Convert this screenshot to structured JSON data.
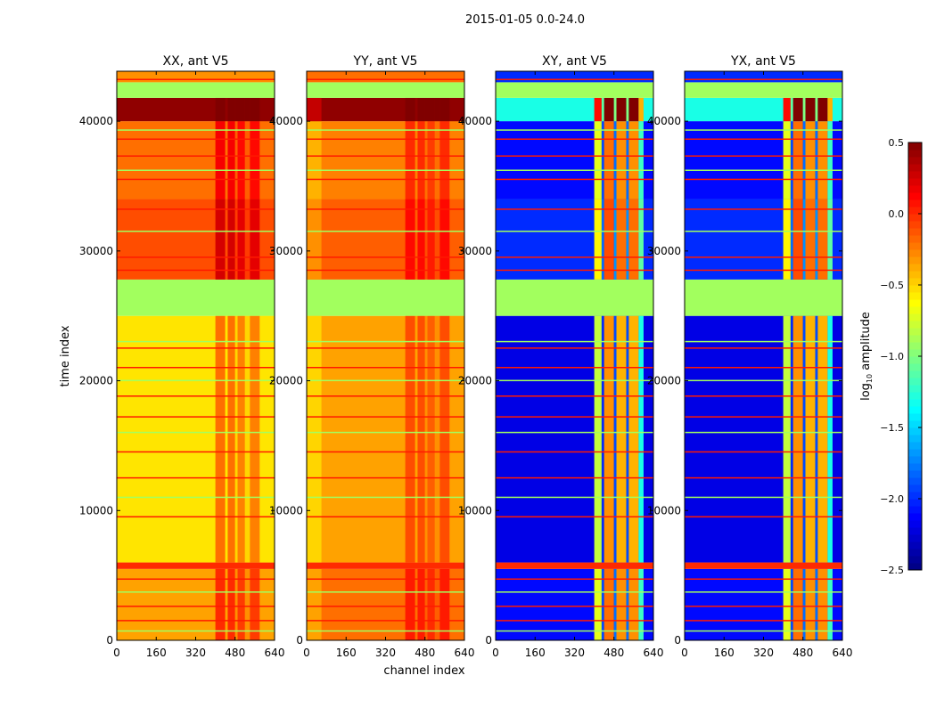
{
  "chart_data": {
    "type": "heatmap",
    "suptitle": "2015-01-05 0.0-24.0",
    "xlabel": "channel index",
    "ylabel": "time index",
    "xlim": [
      0,
      640
    ],
    "ylim": [
      0,
      43850
    ],
    "xticks": [
      0,
      160,
      320,
      480,
      640
    ],
    "yticks": [
      0,
      10000,
      20000,
      30000,
      40000
    ],
    "colorbar": {
      "label_main": "log",
      "label_sub": "10",
      "label_rest": " amplitude",
      "range": [
        -2.5,
        0.5
      ],
      "ticks": [
        -2.5,
        -2.0,
        -1.5,
        -1.0,
        -0.5,
        0.0,
        0.5
      ],
      "tick_labels": [
        "−2.5",
        "−2.0",
        "−1.5",
        "−1.0",
        "−0.5",
        "0.0",
        "0.5"
      ]
    },
    "panels": [
      {
        "title": "XX, ant V5",
        "bands": [
          [
            0,
            5500,
            -0.35
          ],
          [
            5500,
            6000,
            0.0
          ],
          [
            6000,
            25000,
            -0.55
          ],
          [
            25000,
            27800,
            -0.9
          ],
          [
            27800,
            34000,
            -0.1
          ],
          [
            34000,
            40000,
            -0.2
          ],
          [
            40000,
            41800,
            0.45
          ],
          [
            41800,
            43000,
            -0.9
          ],
          [
            43000,
            43850,
            -0.3
          ]
        ],
        "columns": [
          [
            400,
            440,
            0.35
          ],
          [
            440,
            450,
            0.0
          ],
          [
            450,
            480,
            0.35
          ],
          [
            480,
            490,
            0.05
          ],
          [
            490,
            520,
            0.3
          ],
          [
            520,
            540,
            0.05
          ],
          [
            540,
            580,
            0.3
          ],
          [
            580,
            640,
            0.0
          ]
        ]
      },
      {
        "title": "YY, ant V5",
        "bands": [
          [
            0,
            5500,
            -0.2
          ],
          [
            5500,
            6000,
            0.0
          ],
          [
            6000,
            25000,
            -0.35
          ],
          [
            25000,
            27800,
            -0.9
          ],
          [
            27800,
            34000,
            -0.15
          ],
          [
            34000,
            40000,
            -0.25
          ],
          [
            40000,
            41800,
            0.45
          ],
          [
            41800,
            43000,
            -0.9
          ],
          [
            43000,
            43850,
            -0.2
          ]
        ],
        "columns": [
          [
            0,
            60,
            -0.15
          ],
          [
            400,
            440,
            0.25
          ],
          [
            440,
            450,
            0.0
          ],
          [
            450,
            480,
            0.25
          ],
          [
            480,
            490,
            0.05
          ],
          [
            490,
            520,
            0.2
          ],
          [
            520,
            540,
            0.05
          ],
          [
            540,
            580,
            0.25
          ],
          [
            580,
            640,
            0.0
          ]
        ]
      },
      {
        "title": "XY, ant V5",
        "bands": [
          [
            0,
            5500,
            -2.1
          ],
          [
            5500,
            6000,
            0.0
          ],
          [
            6000,
            25000,
            -2.2
          ],
          [
            25000,
            27800,
            -0.9
          ],
          [
            27800,
            34000,
            -2.0
          ],
          [
            34000,
            40000,
            -2.1
          ],
          [
            40000,
            41800,
            -1.3
          ],
          [
            41800,
            43000,
            -0.9
          ],
          [
            43000,
            43850,
            -2.0
          ]
        ],
        "columns": [
          [
            400,
            430,
            1.4
          ],
          [
            430,
            440,
            0.2
          ],
          [
            440,
            480,
            1.9
          ],
          [
            480,
            490,
            0.3
          ],
          [
            490,
            530,
            1.8
          ],
          [
            530,
            540,
            0.3
          ],
          [
            540,
            580,
            1.8
          ],
          [
            580,
            600,
            0.9
          ]
        ]
      },
      {
        "title": "YX, ant V5",
        "bands": [
          [
            0,
            5500,
            -2.1
          ],
          [
            5500,
            6000,
            0.0
          ],
          [
            6000,
            25000,
            -2.2
          ],
          [
            25000,
            27800,
            -0.9
          ],
          [
            27800,
            34000,
            -2.0
          ],
          [
            34000,
            40000,
            -2.1
          ],
          [
            40000,
            41800,
            -1.3
          ],
          [
            41800,
            43000,
            -0.9
          ],
          [
            43000,
            43850,
            -2.0
          ]
        ],
        "columns": [
          [
            400,
            430,
            1.4
          ],
          [
            430,
            440,
            0.2
          ],
          [
            440,
            480,
            1.9
          ],
          [
            480,
            490,
            0.3
          ],
          [
            490,
            530,
            1.8
          ],
          [
            530,
            540,
            0.3
          ],
          [
            540,
            580,
            1.8
          ],
          [
            580,
            600,
            0.9
          ]
        ]
      }
    ],
    "flagged_lines": [
      700,
      1500,
      2600,
      3700,
      4700,
      9500,
      11000,
      12500,
      14500,
      16000,
      17200,
      18800,
      20000,
      21000,
      22500,
      23000,
      28500,
      29500,
      31500,
      33200,
      35500,
      36200,
      37300,
      38600,
      39300,
      43200
    ]
  }
}
